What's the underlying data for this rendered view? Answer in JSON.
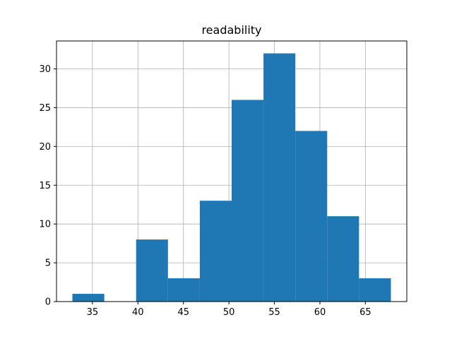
{
  "chart_data": {
    "type": "bar",
    "subtype": "histogram",
    "title": "readability",
    "xlabel": "",
    "ylabel": "",
    "bins": [
      {
        "x0": 32.8,
        "x1": 36.3,
        "value": 1
      },
      {
        "x0": 36.3,
        "x1": 39.8,
        "value": 0
      },
      {
        "x0": 39.8,
        "x1": 43.3,
        "value": 8
      },
      {
        "x0": 43.3,
        "x1": 46.8,
        "value": 3
      },
      {
        "x0": 46.8,
        "x1": 50.3,
        "value": 13
      },
      {
        "x0": 50.3,
        "x1": 53.8,
        "value": 26
      },
      {
        "x0": 53.8,
        "x1": 57.3,
        "value": 32
      },
      {
        "x0": 57.3,
        "x1": 60.8,
        "value": 22
      },
      {
        "x0": 60.8,
        "x1": 64.3,
        "value": 11
      },
      {
        "x0": 64.3,
        "x1": 67.8,
        "value": 3
      }
    ],
    "xlim": [
      31.05,
      69.55
    ],
    "ylim": [
      0,
      33.6
    ],
    "xticks": [
      35,
      40,
      45,
      50,
      55,
      60,
      65
    ],
    "yticks": [
      0,
      5,
      10,
      15,
      20,
      25,
      30
    ],
    "grid": true,
    "bar_color": "#1f77b4"
  }
}
